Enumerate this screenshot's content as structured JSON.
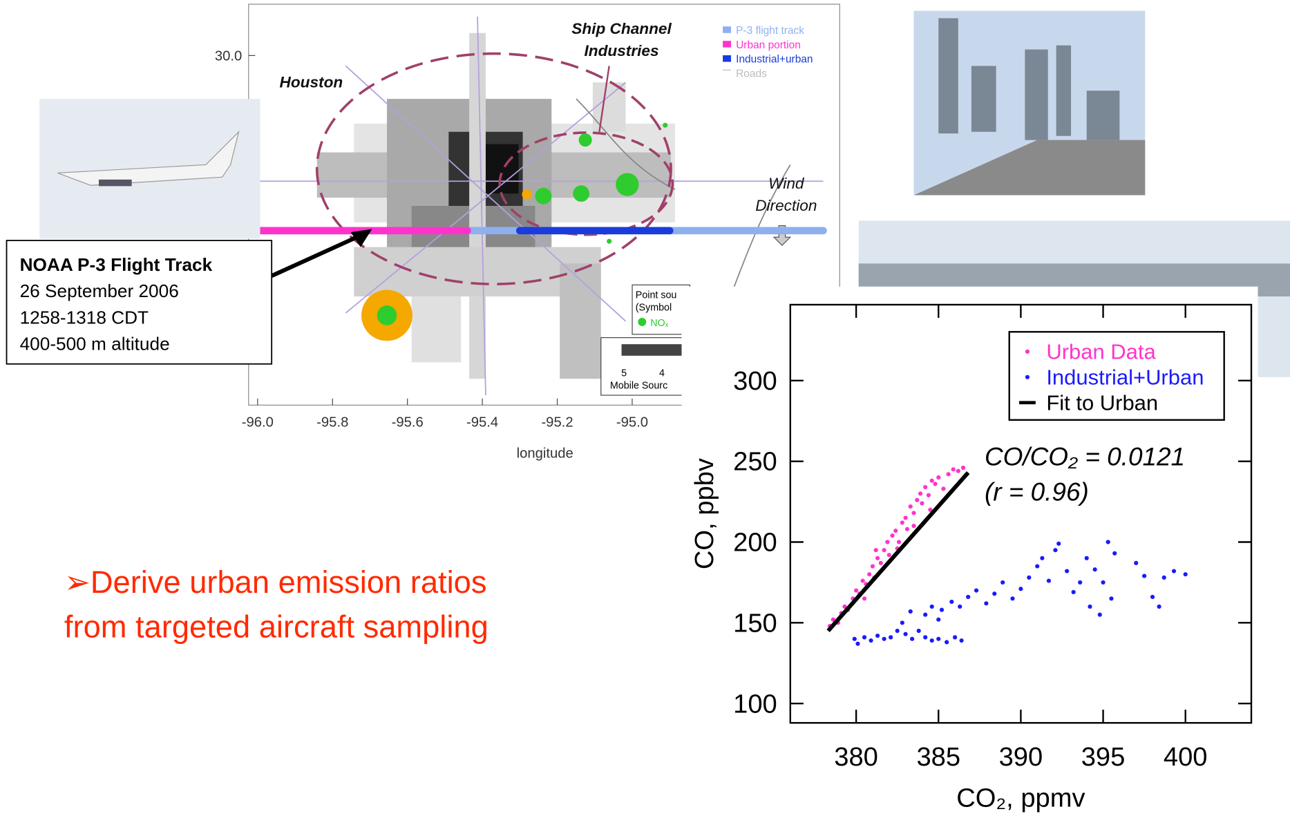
{
  "chart_data": [
    {
      "type": "map",
      "xlabel": "longitude",
      "xlim": [
        -96.024,
        -94.446
      ],
      "xticks": [
        {
          "value": -96,
          "label": "-96.0"
        },
        {
          "value": -95.8,
          "label": "-95.8"
        },
        {
          "value": -95.6,
          "label": "-95.6"
        },
        {
          "value": -95.4,
          "label": "-95.4"
        },
        {
          "value": -95.2,
          "label": "-95.2"
        },
        {
          "value": -95,
          "label": "-95.0"
        }
      ],
      "ylim": [
        28.91,
        30.16
      ],
      "yticks": [
        {
          "value": 30,
          "label": "30.0"
        }
      ],
      "legend": "upper right",
      "series": [
        {
          "name": "P-3 flight track",
          "color": "#8fb0ee",
          "x": [
            -96.0,
            -94.49
          ],
          "values": [
            29.454,
            29.454
          ]
        },
        {
          "name": "Urban portion",
          "color": "#ff33cc",
          "x": [
            -96.0,
            -95.44
          ],
          "values": [
            29.454,
            29.454
          ]
        },
        {
          "name": "Industrial+urban",
          "color": "#1a3cdc",
          "x": [
            -95.3,
            -94.9
          ],
          "values": [
            29.454,
            29.454
          ]
        },
        {
          "name": "Roads",
          "color": "#bbbbbb"
        }
      ],
      "annotations": [
        "Houston",
        "Ship Channel",
        "Industries",
        "Wind",
        "Direction"
      ],
      "point_source_legend": {
        "title": "Point sou",
        "subtitle": "(Symbol",
        "item": "NOₓ"
      },
      "colorbar": {
        "ticks": [
          5,
          4
        ],
        "title": "Mobile Sourc"
      }
    },
    {
      "type": "scatter",
      "xlabel": "CO₂, ppmv",
      "ylabel": "CO, ppbv",
      "xlim": [
        376,
        404
      ],
      "xticks": [
        380,
        385,
        390,
        395,
        400
      ],
      "ylim": [
        88,
        347
      ],
      "yticks": [
        100,
        150,
        200,
        250,
        300
      ],
      "legend": "upper right",
      "annotations": [
        "CO/CO₂ = 0.0121",
        "(r = 0.96)"
      ],
      "series": [
        {
          "name": "Urban Data",
          "color": "#ff33cc",
          "type": "scatter",
          "x": [
            378.4,
            378.6,
            378.9,
            379.1,
            379.3,
            379.5,
            379.8,
            380.0,
            380.2,
            380.4,
            380.6,
            380.8,
            381.0,
            381.1,
            381.3,
            381.5,
            381.7,
            381.9,
            382.0,
            382.2,
            382.4,
            382.6,
            382.8,
            383.0,
            383.1,
            383.3,
            383.5,
            383.7,
            383.9,
            384.0,
            384.2,
            384.4,
            384.6,
            384.8,
            385.0,
            385.3,
            385.6,
            385.9,
            386.2,
            386.5,
            382.5,
            383.5,
            381.2,
            384.5,
            380.5
          ],
          "values": [
            148,
            152,
            150,
            156,
            160,
            158,
            165,
            170,
            168,
            176,
            174,
            180,
            185,
            178,
            190,
            187,
            195,
            200,
            192,
            204,
            207,
            200,
            212,
            215,
            208,
            222,
            218,
            226,
            230,
            224,
            234,
            229,
            238,
            236,
            240,
            233,
            242,
            245,
            244,
            246,
            196,
            210,
            195,
            220,
            165
          ]
        },
        {
          "name": "Industrial+Urban",
          "color": "#1a1aff",
          "type": "scatter",
          "x": [
            379.9,
            380.1,
            380.5,
            380.9,
            381.3,
            381.7,
            382.1,
            382.5,
            382.8,
            383.0,
            383.4,
            383.8,
            384.2,
            384.6,
            385.0,
            385.5,
            386.0,
            386.4,
            384.2,
            384.6,
            385.2,
            385.8,
            386.3,
            386.8,
            387.3,
            387.9,
            388.4,
            388.9,
            389.5,
            390.0,
            390.5,
            391.0,
            391.3,
            391.7,
            392.1,
            392.3,
            392.8,
            393.2,
            393.6,
            394.0,
            394.5,
            395.0,
            395.3,
            395.7,
            394.2,
            394.8,
            395.5,
            397.0,
            397.5,
            398.0,
            398.4,
            398.7,
            399.3,
            400.0,
            385.0,
            383.3
          ],
          "values": [
            140,
            137,
            141,
            139,
            142,
            140,
            141,
            145,
            150,
            143,
            140,
            145,
            141,
            139,
            140,
            138,
            141,
            139,
            155,
            160,
            158,
            163,
            160,
            166,
            170,
            162,
            168,
            175,
            165,
            171,
            178,
            185,
            190,
            176,
            195,
            199,
            182,
            169,
            175,
            190,
            183,
            175,
            200,
            193,
            160,
            155,
            165,
            187,
            179,
            166,
            160,
            178,
            182,
            180,
            152,
            157
          ]
        },
        {
          "name": "Fit to Urban",
          "color": "#000000",
          "type": "line",
          "x": [
            378.3,
            386.8
          ],
          "values": [
            145,
            243
          ]
        }
      ]
    }
  ],
  "callout": {
    "title": "NOAA P-3 Flight Track",
    "lines": [
      "26 September 2006",
      "1258-1318 CDT",
      "400-500 m altitude"
    ]
  },
  "bullet": [
    "➢Derive urban emission ratios",
    "from targeted aircraft sampling"
  ]
}
